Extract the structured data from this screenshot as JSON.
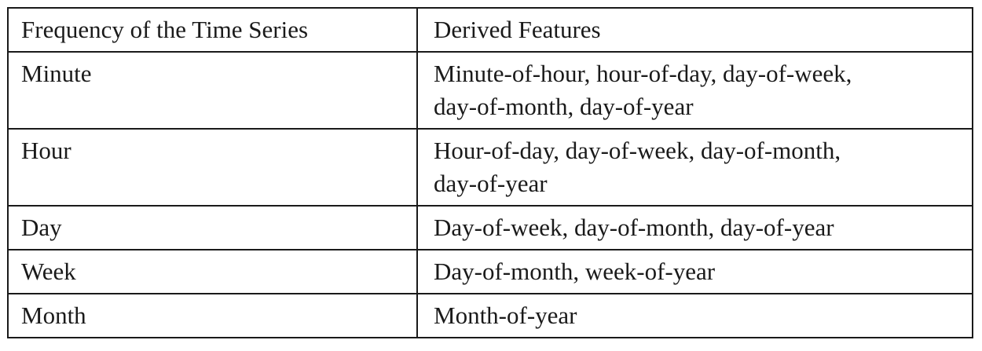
{
  "table": {
    "headers": {
      "frequency": "Frequency of the Time Series",
      "features": "Derived Features"
    },
    "rows": [
      {
        "frequency": "Minute",
        "features_line1": "Minute-of-hour, hour-of-day, day-of-week,",
        "features_line2": "day-of-month, day-of-year"
      },
      {
        "frequency": "Hour",
        "features_line1": "Hour-of-day, day-of-week, day-of-month,",
        "features_line2": "day-of-year"
      },
      {
        "frequency": "Day",
        "features_line1": "Day-of-week, day-of-month, day-of-year"
      },
      {
        "frequency": "Week",
        "features_line1": "Day-of-month, week-of-year"
      },
      {
        "frequency": "Month",
        "features_line1": "Month-of-year"
      }
    ]
  }
}
